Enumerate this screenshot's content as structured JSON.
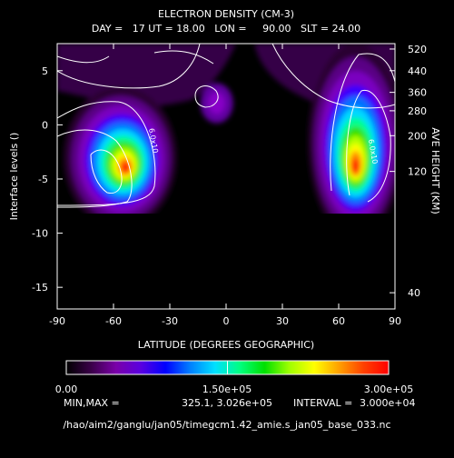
{
  "chart_data": {
    "type": "heatmap",
    "title": "ELECTRON DENSITY (CM-3)",
    "subtitle": "DAY =   17 UT = 18.00   LON =     90.00   SLT = 24.00",
    "xlabel": "LATITUDE (DEGREES GEOGRAPHIC)",
    "ylabel": "Interface levels ()",
    "ylabel_right": "AVE HEIGHT (KM)",
    "xlim": [
      -90,
      90
    ],
    "ylim": [
      -17,
      7.5
    ],
    "x_ticks": [
      -90,
      -60,
      -30,
      0,
      30,
      60,
      90
    ],
    "y_ticks": [
      5,
      0,
      -5,
      -10,
      -15
    ],
    "right_ticks": [
      {
        "level": 7,
        "label": "520"
      },
      {
        "level": 5,
        "label": "440"
      },
      {
        "level": 3,
        "label": "360"
      },
      {
        "level": 1.3,
        "label": "280"
      },
      {
        "level": -1,
        "label": "200"
      },
      {
        "level": -4.3,
        "label": "120"
      },
      {
        "level": -15.5,
        "label": "40"
      }
    ],
    "peaks": [
      {
        "lat": -53,
        "level": -4,
        "value": 302600
      },
      {
        "lat": 69,
        "level": -4,
        "value": 300000
      }
    ],
    "contour_labels": [
      {
        "text": "6.0x10",
        "lat": -40,
        "level": -1.5
      },
      {
        "text": "6.0x10",
        "lat": 77,
        "level": -2.5
      }
    ],
    "colorbar": {
      "min": 0,
      "mid": 150000,
      "max": 300000,
      "labels": [
        "0.00",
        "1.50e+05",
        "3.00e+05"
      ],
      "colors": [
        "#000000",
        "#3a0048",
        "#7a00a8",
        "#5a00e0",
        "#0000ff",
        "#0080ff",
        "#00e0ff",
        "#00ff80",
        "#00e000",
        "#a0ff00",
        "#ffff00",
        "#ffa000",
        "#ff4000",
        "#ff0000"
      ]
    },
    "min_label": "MIN,MAX =",
    "min_value": "325.1, 3.026e+05",
    "interval_label": "INTERVAL =",
    "interval_value": "3.000e+04"
  },
  "footer_path": "/hao/aim2/ganglu/jan05/timegcm1.42_amie.s_jan05_base_033.nc"
}
